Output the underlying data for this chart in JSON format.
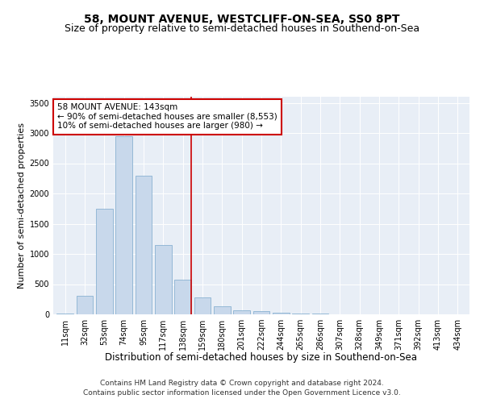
{
  "title": "58, MOUNT AVENUE, WESTCLIFF-ON-SEA, SS0 8PT",
  "subtitle": "Size of property relative to semi-detached houses in Southend-on-Sea",
  "xlabel": "Distribution of semi-detached houses by size in Southend-on-Sea",
  "ylabel": "Number of semi-detached properties",
  "categories": [
    "11sqm",
    "32sqm",
    "53sqm",
    "74sqm",
    "95sqm",
    "117sqm",
    "138sqm",
    "159sqm",
    "180sqm",
    "201sqm",
    "222sqm",
    "244sqm",
    "265sqm",
    "286sqm",
    "307sqm",
    "328sqm",
    "349sqm",
    "371sqm",
    "392sqm",
    "413sqm",
    "434sqm"
  ],
  "values": [
    20,
    310,
    1750,
    2950,
    2300,
    1150,
    580,
    280,
    130,
    70,
    60,
    30,
    10,
    10,
    5,
    2,
    1,
    0,
    0,
    0,
    0
  ],
  "bar_color": "#c8d8eb",
  "bar_edge_color": "#7aa8cc",
  "highlight_index": 6,
  "vline_color": "#cc0000",
  "annotation_text": "58 MOUNT AVENUE: 143sqm\n← 90% of semi-detached houses are smaller (8,553)\n10% of semi-detached houses are larger (980) →",
  "annotation_box_color": "#ffffff",
  "annotation_box_edge": "#cc0000",
  "ylim": [
    0,
    3600
  ],
  "yticks": [
    0,
    500,
    1000,
    1500,
    2000,
    2500,
    3000,
    3500
  ],
  "fig_background": "#ffffff",
  "plot_background": "#e8eef6",
  "footer1": "Contains HM Land Registry data © Crown copyright and database right 2024.",
  "footer2": "Contains public sector information licensed under the Open Government Licence v3.0.",
  "title_fontsize": 10,
  "subtitle_fontsize": 9,
  "xlabel_fontsize": 8.5,
  "ylabel_fontsize": 8,
  "tick_fontsize": 7,
  "annotation_fontsize": 7.5,
  "footer_fontsize": 6.5
}
